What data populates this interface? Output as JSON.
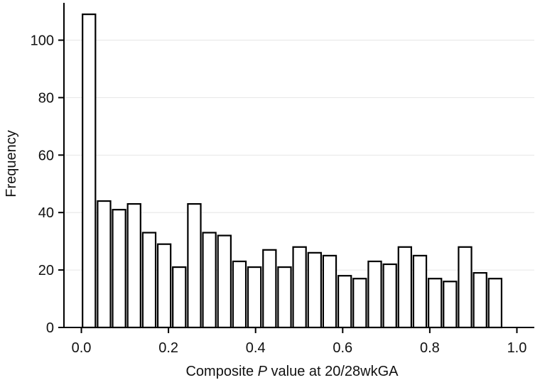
{
  "chart_data": {
    "type": "bar",
    "xlabel_prefix": "Composite ",
    "xlabel_italic": "P",
    "xlabel_suffix": " value at 20/28wkGA",
    "ylabel": "Frequency",
    "xlim": [
      -0.04,
      1.04
    ],
    "ylim": [
      0,
      112
    ],
    "x_ticks": [
      0.0,
      0.2,
      0.4,
      0.6,
      0.8,
      1.0
    ],
    "x_tick_labels": [
      "0.0",
      "0.2",
      "0.4",
      "0.6",
      "0.8",
      "1.0"
    ],
    "y_ticks": [
      0,
      20,
      40,
      60,
      80,
      100
    ],
    "y_tick_labels": [
      "0",
      "20",
      "40",
      "60",
      "80",
      "100"
    ],
    "grid": "horizontal",
    "bar_width": 0.0345,
    "x": [
      0.0175,
      0.0521,
      0.0866,
      0.1211,
      0.1557,
      0.1902,
      0.2247,
      0.2593,
      0.2938,
      0.3284,
      0.3629,
      0.3974,
      0.432,
      0.4665,
      0.501,
      0.5356,
      0.5701,
      0.6047,
      0.6392,
      0.6737,
      0.7083,
      0.7428,
      0.7773,
      0.8119,
      0.8464,
      0.8809,
      0.9155,
      0.95,
      0.9846
    ],
    "values": [
      109,
      44,
      41,
      43,
      33,
      29,
      21,
      43,
      33,
      32,
      23,
      21,
      27,
      21,
      28,
      26,
      25,
      18,
      17,
      23,
      22,
      28,
      25,
      17,
      16,
      28,
      19,
      17,
      0
    ]
  }
}
